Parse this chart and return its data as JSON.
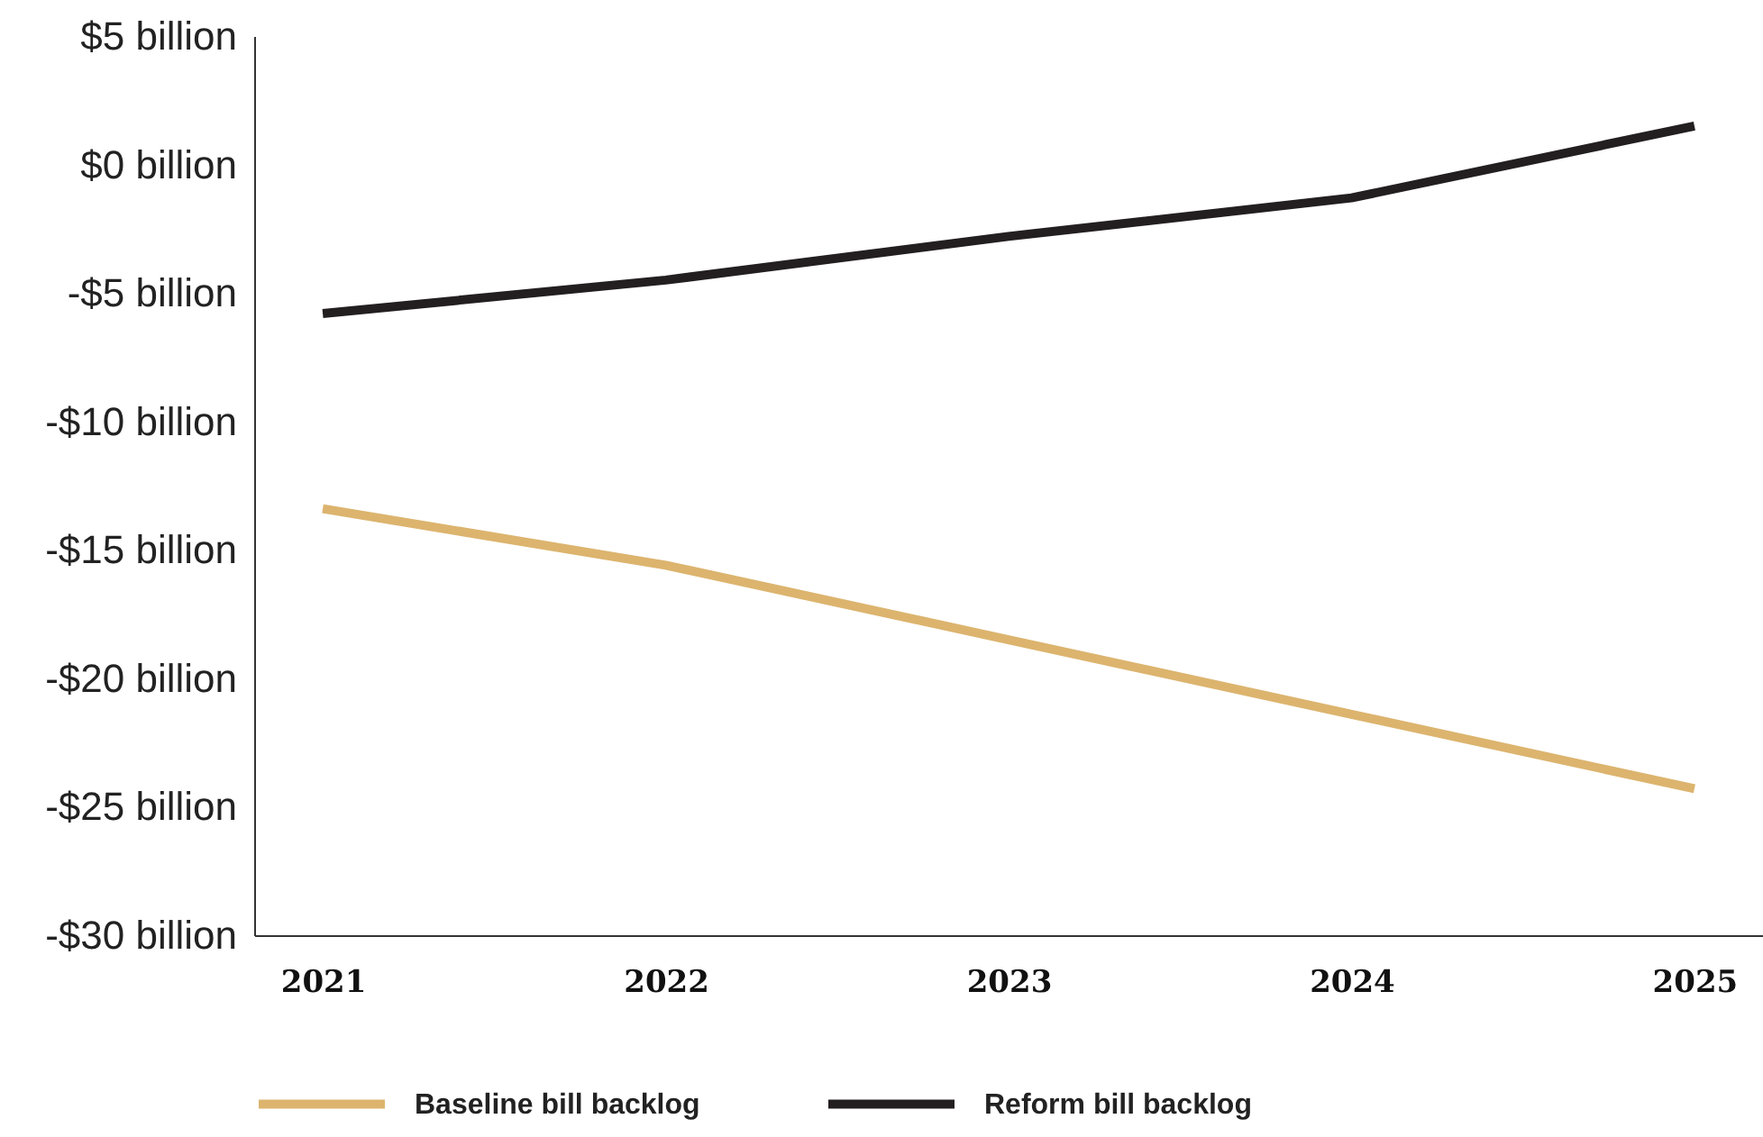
{
  "chart_data": {
    "type": "line",
    "categories": [
      "2021",
      "2022",
      "2023",
      "2024",
      "2025"
    ],
    "series": [
      {
        "name": "Baseline bill backlog",
        "color": "#dcb46e",
        "values": [
          -13.4,
          -15.6,
          -18.5,
          -21.4,
          -24.3
        ]
      },
      {
        "name": "Reform bill backlog",
        "color": "#231f20",
        "values": [
          -5.8,
          -4.5,
          -2.8,
          -1.3,
          1.5
        ]
      }
    ],
    "ylim": [
      -30,
      5
    ],
    "yticks": [
      {
        "value": -30,
        "label": "-$30 billion"
      },
      {
        "value": -25,
        "label": "-$25 billion"
      },
      {
        "value": -20,
        "label": "-$20 billion"
      },
      {
        "value": -15,
        "label": "-$15 billion"
      },
      {
        "value": -10,
        "label": "-$10 billion"
      },
      {
        "value": -5,
        "label": "-$5 billion"
      },
      {
        "value": 0,
        "label": "$0 billion"
      },
      {
        "value": 5,
        "label": "$5 billion"
      }
    ],
    "legend": "bottom",
    "marker": "none",
    "line_style": "solid"
  }
}
